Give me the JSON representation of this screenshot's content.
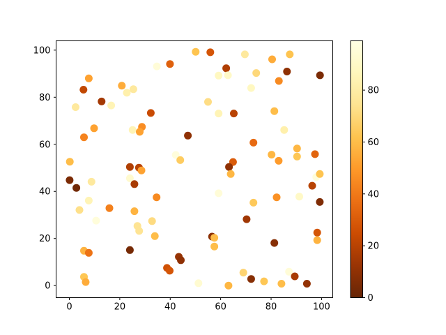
{
  "figure": {
    "background": "#ffffff",
    "title": ""
  },
  "chart_data": {
    "type": "scatter",
    "title": "",
    "xlabel": "",
    "ylabel": "",
    "xlim": [
      -5.25,
      104.45
    ],
    "ylim": [
      -5.13,
      103.95
    ],
    "grid": false,
    "x_tick_labels": [
      "0",
      "20",
      "40",
      "60",
      "80",
      "100"
    ],
    "y_tick_labels": [
      "0",
      "20",
      "40",
      "60",
      "80",
      "100"
    ],
    "x_ticks": [
      0,
      20,
      40,
      60,
      80,
      100
    ],
    "y_ticks": [
      0,
      20,
      40,
      60,
      80,
      100
    ],
    "marker_diameter_px": 11,
    "colormap": "YlOrBr_r",
    "palette_light_to_dark": [
      "#ffffe5",
      "#fff7bc",
      "#fee391",
      "#fec44f",
      "#fe9929",
      "#ec7014",
      "#cc4c02",
      "#993404",
      "#662506"
    ],
    "colorbar": {
      "vmin": 0,
      "vmax": 99,
      "ticks": [
        0,
        20,
        40,
        60,
        80
      ],
      "tick_labels": [
        "0",
        "20",
        "40",
        "60",
        "80"
      ],
      "position": "right"
    },
    "points": [
      [
        7.7,
        88,
        52
      ],
      [
        5.6,
        83.2,
        22
      ],
      [
        20.8,
        84.9,
        55
      ],
      [
        25.4,
        83.4,
        78
      ],
      [
        22.8,
        81.9,
        82
      ],
      [
        12.8,
        78.2,
        15
      ],
      [
        16.6,
        76.5,
        85
      ],
      [
        2.5,
        75.8,
        78
      ],
      [
        50.1,
        99.3,
        62
      ],
      [
        55.9,
        99.1,
        28
      ],
      [
        34.7,
        93.1,
        95
      ],
      [
        39.9,
        94.1,
        32
      ],
      [
        62.2,
        92.3,
        18
      ],
      [
        59.2,
        89.2,
        88
      ],
      [
        62.9,
        89.3,
        90
      ],
      [
        55,
        78,
        72
      ],
      [
        59.2,
        73.1,
        85
      ],
      [
        65.2,
        73.1,
        20
      ],
      [
        32.3,
        73.3,
        24
      ],
      [
        69.6,
        98.2,
        78
      ],
      [
        80.4,
        96.1,
        55
      ],
      [
        87.4,
        98.2,
        62
      ],
      [
        86.3,
        90.9,
        10
      ],
      [
        74.1,
        90.3,
        70
      ],
      [
        99.4,
        89.3,
        5
      ],
      [
        83.1,
        86.9,
        45
      ],
      [
        72.1,
        83.9,
        88
      ],
      [
        81.3,
        74.1,
        60
      ],
      [
        9.8,
        66.8,
        52
      ],
      [
        5.8,
        63,
        43
      ],
      [
        25.1,
        66.1,
        85
      ],
      [
        28.8,
        67.4,
        46
      ],
      [
        27.9,
        65.3,
        52
      ],
      [
        0.2,
        52.6,
        60
      ],
      [
        24,
        50.4,
        18
      ],
      [
        27.6,
        50.1,
        20
      ],
      [
        28.6,
        48.9,
        52
      ],
      [
        24,
        45.6,
        92
      ],
      [
        25.8,
        43.1,
        16
      ],
      [
        8.8,
        44.1,
        78
      ],
      [
        0.1,
        44.8,
        5
      ],
      [
        2.8,
        41.5,
        3
      ],
      [
        7.7,
        36.1,
        85
      ],
      [
        15.9,
        32.9,
        42
      ],
      [
        4,
        32.1,
        73
      ],
      [
        25.8,
        31.6,
        57
      ],
      [
        47,
        63.7,
        10
      ],
      [
        42.2,
        55.5,
        96
      ],
      [
        44,
        53.3,
        65
      ],
      [
        64.9,
        52.5,
        30
      ],
      [
        63.3,
        50.4,
        10
      ],
      [
        64,
        47.4,
        58
      ],
      [
        59.2,
        39.2,
        95
      ],
      [
        34.6,
        37.5,
        45
      ],
      [
        85.2,
        66.1,
        82
      ],
      [
        73,
        60.7,
        35
      ],
      [
        90.3,
        58.2,
        58
      ],
      [
        80.2,
        55.6,
        58
      ],
      [
        90.3,
        54.8,
        63
      ],
      [
        97.4,
        55.8,
        33
      ],
      [
        83,
        53,
        50
      ],
      [
        97.9,
        46.1,
        96
      ],
      [
        99.3,
        47.4,
        62
      ],
      [
        96.3,
        42.4,
        20
      ],
      [
        91.2,
        37.8,
        90
      ],
      [
        82.2,
        37.5,
        47
      ],
      [
        73,
        35.2,
        64
      ],
      [
        99.3,
        35.5,
        6
      ],
      [
        10.6,
        27.6,
        96
      ],
      [
        27,
        25.3,
        75
      ],
      [
        27.7,
        23.2,
        75
      ],
      [
        5.8,
        14.8,
        57
      ],
      [
        7.7,
        13.9,
        38
      ],
      [
        24,
        15.1,
        4
      ],
      [
        5.8,
        3.7,
        63
      ],
      [
        6.5,
        1.5,
        55
      ],
      [
        32.8,
        27.4,
        71
      ],
      [
        33.9,
        21,
        60
      ],
      [
        56.6,
        20.8,
        9
      ],
      [
        57.5,
        20.3,
        60
      ],
      [
        57.5,
        16.6,
        60
      ],
      [
        43.4,
        12.2,
        12
      ],
      [
        44.2,
        10.8,
        10
      ],
      [
        38.7,
        7.5,
        26
      ],
      [
        39.8,
        6.3,
        28
      ],
      [
        51.2,
        1,
        93
      ],
      [
        63.1,
        0,
        58
      ],
      [
        70.3,
        28.2,
        14
      ],
      [
        98.3,
        22.5,
        28
      ],
      [
        98.3,
        19.3,
        57
      ],
      [
        81.3,
        18.1,
        8
      ],
      [
        69,
        5.5,
        68
      ],
      [
        72.1,
        2.8,
        8
      ],
      [
        77.2,
        1.8,
        63
      ],
      [
        84.1,
        0.8,
        60
      ],
      [
        87.1,
        5.9,
        95
      ],
      [
        89.4,
        3.9,
        16
      ],
      [
        94.2,
        0.8,
        11
      ]
    ]
  }
}
